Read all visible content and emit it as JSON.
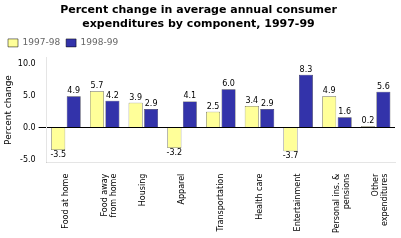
{
  "chart_data": {
    "type": "bar",
    "title": "Percent change in average annual consumer\nexpenditures by component, 1997-99",
    "categories": [
      "Food at home",
      "Food away\nfrom home",
      "Housing",
      "Apparel",
      "Transportation",
      "Health care",
      "Entertainment",
      "Personal ins. &\npensions",
      "Other\nexpenditures"
    ],
    "series": [
      {
        "name": "1997-98",
        "color": "#FFFF99",
        "values": [
          -3.5,
          5.7,
          3.9,
          -3.2,
          2.5,
          3.4,
          -3.7,
          4.9,
          0.2
        ]
      },
      {
        "name": "1998-99",
        "color": "#3333AA",
        "values": [
          4.9,
          4.2,
          2.9,
          4.1,
          6.0,
          2.9,
          8.3,
          1.6,
          5.6
        ],
        "value_labels": [
          "4.9",
          "4.2",
          "2.9",
          "4.1",
          "6.0",
          "2.9",
          "8.3",
          "1.6",
          "5.6"
        ]
      }
    ],
    "ylabel": "Percent change",
    "ylim": [
      -5.5,
      11.0
    ],
    "yticks": [
      {
        "value": -5.0,
        "label": "-5.0"
      },
      {
        "value": 0.0,
        "label": "0.0"
      },
      {
        "value": 5.0,
        "label": "5.0"
      },
      {
        "value": 10.0,
        "label": "10.0"
      }
    ],
    "grid": false,
    "legend": "upper left",
    "data_labels": true
  }
}
